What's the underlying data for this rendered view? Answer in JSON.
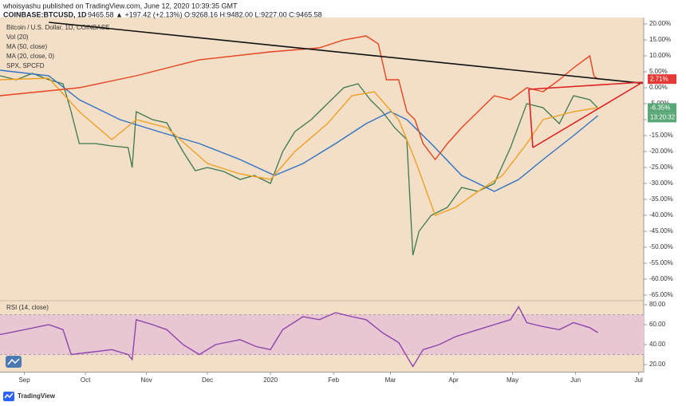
{
  "header": {
    "author_line": "whoisyashu published on TradingView.com, June 12, 2020 10:39:35 GMT",
    "symbol": "COINBASE:BTCUSD, 1D",
    "quote": "9465.58 ▲ +197.42 (+2.13%) O:9268.16 H:9482.00 L:9227.00 C:9465.58"
  },
  "footer": {
    "brand": "TradingView"
  },
  "chart_data": [
    {
      "type": "line",
      "title": "Bitcoin / U.S. Dollar, 1D, COINBASE",
      "volume_label": "Vol (20)",
      "xlim": [
        0,
        316.5
      ],
      "xticks": [
        {
          "value": 12,
          "label": "Sep"
        },
        {
          "value": 42,
          "label": "Oct"
        },
        {
          "value": 72,
          "label": "Nov"
        },
        {
          "value": 102,
          "label": "Dec"
        },
        {
          "value": 133,
          "label": "2020"
        },
        {
          "value": 164,
          "label": "Feb"
        },
        {
          "value": 192,
          "label": "Mar"
        },
        {
          "value": 223,
          "label": "Apr"
        },
        {
          "value": 252,
          "label": "May"
        },
        {
          "value": 283,
          "label": "Jun"
        },
        {
          "value": 314,
          "label": "Jul"
        }
      ],
      "ylim": [
        -66.75,
        22
      ],
      "yticks": [
        {
          "value": 20,
          "label": "20.00%"
        },
        {
          "value": 15,
          "label": "15.00%"
        },
        {
          "value": 10,
          "label": "10.00%"
        },
        {
          "value": 5,
          "label": "5.00%"
        },
        {
          "value": 0,
          "label": "0.00%"
        },
        {
          "value": -5,
          "label": "-5.00%"
        },
        {
          "value": -10,
          "label": "-10.00%"
        },
        {
          "value": -15,
          "label": "-15.00%"
        },
        {
          "value": -20,
          "label": "-20.00%"
        },
        {
          "value": -25,
          "label": "-25.00%"
        },
        {
          "value": -30,
          "label": "-30.00%"
        },
        {
          "value": -35,
          "label": "-35.00%"
        },
        {
          "value": -40,
          "label": "-40.00%"
        },
        {
          "value": -45,
          "label": "-45.00%"
        },
        {
          "value": -50,
          "label": "-50.00%"
        },
        {
          "value": -55,
          "label": "-55.00%"
        },
        {
          "value": -60,
          "label": "-60.00%"
        },
        {
          "value": -65,
          "label": "-65.00%"
        }
      ],
      "series": [
        {
          "color": "#3a7a4a",
          "x": [
            0,
            8,
            16,
            24,
            31,
            35,
            39,
            47,
            55,
            63,
            65,
            67,
            75,
            82,
            90,
            96,
            102,
            110,
            118,
            125,
            133,
            139,
            145,
            153,
            161,
            169,
            176,
            182,
            188,
            194,
            200,
            203,
            206,
            212,
            220,
            227,
            235,
            243,
            251,
            259,
            267,
            275,
            282,
            290,
            294
          ],
          "values": [
            3.75,
            2.5,
            4.5,
            2.5,
            1.25,
            -7.5,
            -17.5,
            -17.5,
            -18.25,
            -18.75,
            -25,
            -7.5,
            -10,
            -11,
            -20,
            -26,
            -25,
            -26.25,
            -28.75,
            -27.5,
            -30,
            -20,
            -13.75,
            -10,
            -5,
            0,
            1.25,
            -3.75,
            -7.5,
            -12.5,
            -16.25,
            -52.5,
            -45,
            -40,
            -37.5,
            -31.25,
            -32.5,
            -30,
            -18.75,
            -5,
            -6.25,
            -11.25,
            -2.5,
            -3.75,
            -6.35
          ]
        },
        {
          "name": "MA (50, close)",
          "color": "#2f72c4",
          "x": [
            0,
            24,
            39,
            59,
            78,
            98,
            118,
            135,
            149,
            165,
            180,
            192,
            200,
            212,
            227,
            243,
            255,
            267,
            282,
            294
          ],
          "values": [
            5.5,
            3.75,
            -3.75,
            -10,
            -13.75,
            -17.5,
            -22.5,
            -27.5,
            -23.75,
            -17.5,
            -11.25,
            -7.5,
            -10,
            -17.5,
            -27.5,
            -32.5,
            -28.75,
            -22.5,
            -15,
            -8.75
          ]
        },
        {
          "name": "MA (20, close, 0)",
          "color": "#f0a020",
          "x": [
            0,
            24,
            39,
            55,
            67,
            82,
            102,
            118,
            133,
            145,
            161,
            173,
            184,
            196,
            204,
            214,
            224,
            235,
            247,
            259,
            267,
            282,
            294
          ],
          "values": [
            2.5,
            3,
            -7.5,
            -16.25,
            -10,
            -12.5,
            -23.75,
            -27,
            -28.75,
            -20,
            -11.25,
            -2.5,
            -1.25,
            -10,
            -22.5,
            -40,
            -37.5,
            -32.5,
            -27.5,
            -17.5,
            -10,
            -7.5,
            -6.25
          ]
        },
        {
          "name": "SPX, SPCFD",
          "color": "#e8431f",
          "x": [
            0,
            39,
            67,
            98,
            133,
            157,
            169,
            180,
            186,
            190,
            196,
            200,
            204,
            208,
            214,
            220,
            227,
            235,
            243,
            251,
            259,
            267,
            275,
            282,
            290,
            292,
            294
          ],
          "values": [
            -2.5,
            0,
            3.75,
            8.75,
            11.25,
            12.5,
            15,
            16.25,
            13.75,
            2.5,
            2.5,
            -7.5,
            -10,
            -17.5,
            -22.5,
            -17.5,
            -12.5,
            -7.5,
            -2.5,
            -3.75,
            0,
            -1.25,
            2.5,
            6.25,
            10,
            3.75,
            2.71
          ]
        }
      ],
      "trendlines": [
        {
          "color": "#111111",
          "x": [
            24,
            316
          ],
          "values": [
            20.5,
            1.4
          ]
        },
        {
          "color": "#e02020",
          "x": [
            262,
            316
          ],
          "values": [
            -18.75,
            1.75
          ]
        },
        {
          "color": "#e02020",
          "x": [
            260,
            316
          ],
          "values": [
            -0.5,
            1.75
          ]
        },
        {
          "color": "#e02020",
          "x": [
            260,
            262
          ],
          "values": [
            -0.5,
            -18.75
          ]
        }
      ],
      "price_tags": [
        {
          "value": 2.71,
          "label": "2.71%",
          "color": "#e53935"
        },
        {
          "value": -6.35,
          "label": "-6.35%",
          "color": "#5aa878"
        }
      ],
      "countdown": "13:20:32"
    },
    {
      "type": "line",
      "title": "RSI (14, close)",
      "ylim": [
        12.8,
        84
      ],
      "band": [
        30,
        70
      ],
      "band_color": "#e8c6d2",
      "yticks": [
        {
          "value": 20,
          "label": "20.00"
        },
        {
          "value": 40,
          "label": "40.00"
        },
        {
          "value": 60,
          "label": "60.00"
        },
        {
          "value": 80,
          "label": "80.00"
        }
      ],
      "series": [
        {
          "color": "#8e44ad",
          "x": [
            0,
            12,
            24,
            31,
            35,
            43,
            55,
            63,
            65,
            67,
            75,
            82,
            90,
            98,
            106,
            118,
            126,
            133,
            139,
            149,
            157,
            165,
            173,
            180,
            188,
            196,
            203,
            208,
            216,
            224,
            235,
            243,
            251,
            255,
            259,
            267,
            275,
            282,
            290,
            294
          ],
          "values": [
            50,
            55,
            60,
            55,
            30,
            32,
            35,
            30,
            25,
            65,
            60,
            55,
            40,
            30,
            40,
            45,
            38,
            35,
            55,
            68,
            65,
            72,
            68,
            65,
            52,
            42,
            18,
            35,
            40,
            48,
            55,
            60,
            65,
            78,
            62,
            58,
            55,
            62,
            57,
            52
          ]
        }
      ]
    }
  ]
}
